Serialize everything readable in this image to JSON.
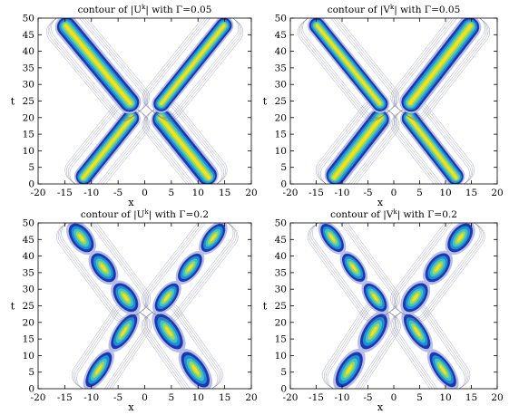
{
  "chart_data": [
    {
      "type": "heatmap",
      "title": "contour of |U",
      "title_sup": "k",
      "title_suffix": "| with Γ=0.05",
      "xlabel": "x",
      "ylabel": "t",
      "xlim": [
        -20,
        20
      ],
      "ylim": [
        0,
        50
      ],
      "xticks": [
        -20,
        -15,
        -10,
        -5,
        0,
        5,
        10,
        15,
        20
      ],
      "yticks": [
        0,
        5,
        10,
        15,
        20,
        25,
        30,
        35,
        40,
        45,
        50
      ],
      "gamma": 0.05,
      "soliton_paths": [
        {
          "x_start": -12.5,
          "t_start": 0,
          "x_end": -1.5,
          "t_end": 22,
          "strength": 0.85
        },
        {
          "x_start": -16.0,
          "t_start": 50,
          "x_end": -1.5,
          "t_end": 22,
          "strength": 1.0
        },
        {
          "x_start": 2.0,
          "t_start": 22,
          "x_end": 13.0,
          "t_end": 0,
          "strength": 1.0
        },
        {
          "x_start": 2.0,
          "t_start": 22,
          "x_end": 16.0,
          "t_end": 50,
          "strength": 0.8
        }
      ]
    },
    {
      "type": "heatmap",
      "title": "contour of |V",
      "title_sup": "k",
      "title_suffix": "| with Γ=0.05",
      "xlabel": "x",
      "ylabel": "t",
      "xlim": [
        -20,
        20
      ],
      "ylim": [
        0,
        50
      ],
      "xticks": [
        -20,
        -15,
        -10,
        -5,
        0,
        5,
        10,
        15,
        20
      ],
      "yticks": [
        0,
        5,
        10,
        15,
        20,
        25,
        30,
        35,
        40,
        45,
        50
      ],
      "gamma": 0.05,
      "soliton_paths": [
        {
          "x_start": -12.5,
          "t_start": 0,
          "x_end": -1.5,
          "t_end": 22,
          "strength": 1.0
        },
        {
          "x_start": -16.0,
          "t_start": 50,
          "x_end": -1.5,
          "t_end": 22,
          "strength": 0.8
        },
        {
          "x_start": 2.0,
          "t_start": 22,
          "x_end": 13.0,
          "t_end": 0,
          "strength": 0.85
        },
        {
          "x_start": 2.0,
          "t_start": 22,
          "x_end": 16.0,
          "t_end": 50,
          "strength": 1.0
        }
      ]
    },
    {
      "type": "heatmap",
      "title": "contour of |U",
      "title_sup": "k",
      "title_suffix": "| with Γ=0.2",
      "xlabel": "x",
      "ylabel": "t",
      "xlim": [
        -20,
        20
      ],
      "ylim": [
        0,
        50
      ],
      "xticks": [
        -20,
        -15,
        -10,
        -5,
        0,
        5,
        10,
        15,
        20
      ],
      "yticks": [
        0,
        5,
        10,
        15,
        20,
        25,
        30,
        35,
        40,
        45,
        50
      ],
      "gamma": 0.2,
      "soliton_paths": [
        {
          "x_start": -11.0,
          "t_start": 0,
          "x_end": -1.5,
          "t_end": 23,
          "strength": 0.85
        },
        {
          "x_start": -14.0,
          "t_start": 50,
          "x_end": -1.5,
          "t_end": 23,
          "strength": 1.0
        },
        {
          "x_start": 2.0,
          "t_start": 23,
          "x_end": 12.0,
          "t_end": 0,
          "strength": 1.0
        },
        {
          "x_start": 2.0,
          "t_start": 23,
          "x_end": 15.0,
          "t_end": 50,
          "strength": 0.85
        }
      ]
    },
    {
      "type": "heatmap",
      "title": "contour of |V",
      "title_sup": "k",
      "title_suffix": "| with Γ=0.2",
      "xlabel": "x",
      "ylabel": "t",
      "xlim": [
        -20,
        20
      ],
      "ylim": [
        0,
        50
      ],
      "xticks": [
        -20,
        -15,
        -10,
        -5,
        0,
        5,
        10,
        15,
        20
      ],
      "yticks": [
        0,
        5,
        10,
        15,
        20,
        25,
        30,
        35,
        40,
        45,
        50
      ],
      "gamma": 0.2,
      "soliton_paths": [
        {
          "x_start": -11.0,
          "t_start": 0,
          "x_end": -1.5,
          "t_end": 23,
          "strength": 1.0
        },
        {
          "x_start": -14.0,
          "t_start": 50,
          "x_end": -1.5,
          "t_end": 23,
          "strength": 0.85
        },
        {
          "x_start": 2.0,
          "t_start": 23,
          "x_end": 12.0,
          "t_end": 0,
          "strength": 0.85
        },
        {
          "x_start": 2.0,
          "t_start": 23,
          "x_end": 15.0,
          "t_end": 50,
          "strength": 1.0
        }
      ]
    }
  ],
  "colormap": [
    "#ffffff",
    "#b8bde6",
    "#1d36b5",
    "#1e90d0",
    "#3fc3c9",
    "#9ed65a",
    "#f2e11d"
  ]
}
